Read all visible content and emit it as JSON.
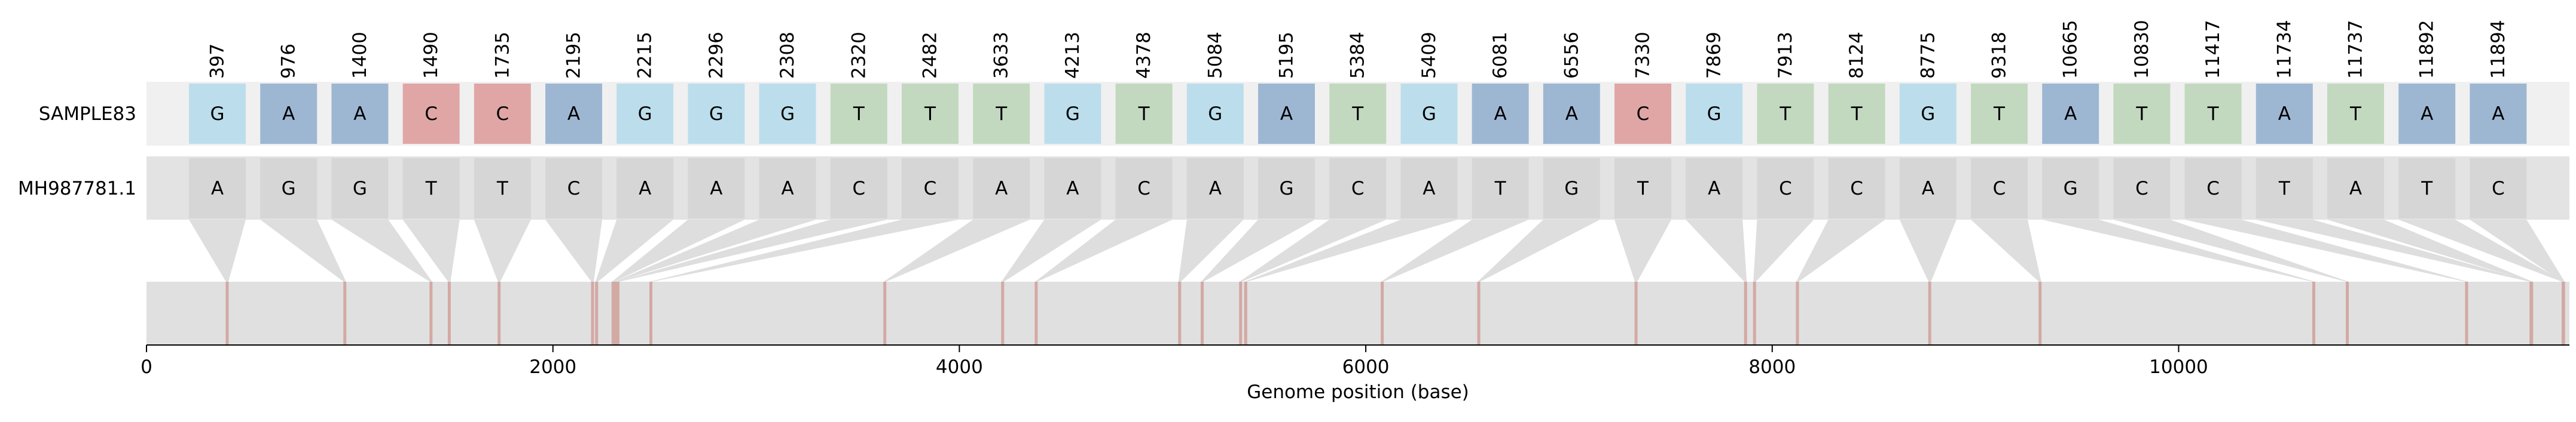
{
  "chart_data": {
    "type": "snp-alignment",
    "title": "",
    "xlabel": "Genome position (base)",
    "ylabel": "",
    "xlim": [
      0,
      11923
    ],
    "x_ticks": [
      0,
      2000,
      4000,
      6000,
      8000,
      10000
    ],
    "tracks": [
      {
        "name": "SAMPLE83",
        "bases": [
          "G",
          "A",
          "A",
          "C",
          "C",
          "A",
          "G",
          "G",
          "G",
          "T",
          "T",
          "T",
          "G",
          "T",
          "G",
          "A",
          "T",
          "G",
          "A",
          "A",
          "C",
          "G",
          "T",
          "T",
          "G",
          "T",
          "A",
          "T",
          "T",
          "A",
          "T",
          "A",
          "A"
        ]
      },
      {
        "name": "MH987781.1",
        "bases": [
          "A",
          "G",
          "G",
          "T",
          "T",
          "C",
          "A",
          "A",
          "A",
          "C",
          "C",
          "A",
          "A",
          "C",
          "A",
          "G",
          "C",
          "A",
          "T",
          "G",
          "T",
          "A",
          "C",
          "C",
          "A",
          "C",
          "G",
          "C",
          "C",
          "T",
          "A",
          "T",
          "C"
        ]
      }
    ],
    "positions": [
      397,
      976,
      1400,
      1490,
      1735,
      2195,
      2215,
      2296,
      2308,
      2320,
      2482,
      3633,
      4213,
      4378,
      5084,
      5195,
      5384,
      5409,
      6081,
      6556,
      7330,
      7869,
      7913,
      8124,
      8775,
      9318,
      10665,
      10830,
      11417,
      11734,
      11737,
      11892,
      11894
    ],
    "base_colors": {
      "A": "#9db7d3",
      "C": "#e0a6a6",
      "G": "#bcdeec",
      "T": "#c2d9c0"
    },
    "reference_cell_color": "#d6d6d6",
    "reference_band_color": "#e3e3e3",
    "sample_band_color": "#f0f0f0",
    "genome_band_color": "#e0e0e0",
    "snp_marker_color": "#d3a9a4"
  }
}
